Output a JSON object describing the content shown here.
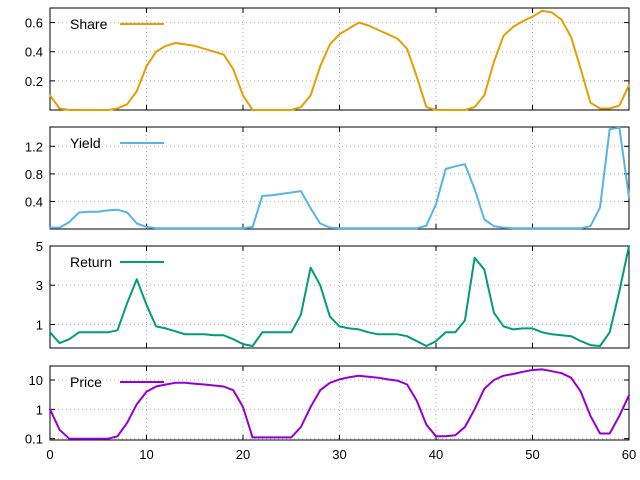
{
  "chart_data": [
    {
      "type": "line",
      "title": "",
      "xlabel": "",
      "ylabel": "",
      "xlim": [
        0,
        60
      ],
      "ylim": [
        0,
        0.7
      ],
      "yscale": "linear",
      "yticks": [
        0.2,
        0.4,
        0.6
      ],
      "ytick_labels": [
        "0.2",
        "0.4",
        "0.6"
      ],
      "xticks": [
        0,
        10,
        20,
        30,
        40,
        50,
        60
      ],
      "xtick_labels": [],
      "grid": true,
      "legend": "top-left",
      "series": [
        {
          "name": "Share",
          "color": "#e69f00",
          "x": [
            0,
            1,
            2,
            3,
            4,
            5,
            6,
            7,
            8,
            9,
            10,
            11,
            12,
            13,
            14,
            15,
            16,
            17,
            18,
            19,
            20,
            21,
            22,
            23,
            24,
            25,
            26,
            27,
            28,
            29,
            30,
            31,
            32,
            33,
            34,
            35,
            36,
            37,
            38,
            39,
            40,
            41,
            42,
            43,
            44,
            45,
            46,
            47,
            48,
            49,
            50,
            51,
            52,
            53,
            54,
            55,
            56,
            57,
            58,
            59,
            60
          ],
          "y": [
            0.1,
            0.01,
            0.0,
            0.0,
            0.0,
            0.0,
            0.0,
            0.01,
            0.04,
            0.13,
            0.3,
            0.4,
            0.44,
            0.46,
            0.45,
            0.44,
            0.42,
            0.4,
            0.38,
            0.28,
            0.1,
            0.0,
            0.0,
            0.0,
            0.0,
            0.0,
            0.02,
            0.1,
            0.3,
            0.45,
            0.52,
            0.56,
            0.6,
            0.58,
            0.55,
            0.52,
            0.49,
            0.42,
            0.23,
            0.02,
            0.0,
            0.0,
            0.0,
            0.0,
            0.02,
            0.1,
            0.33,
            0.51,
            0.57,
            0.61,
            0.64,
            0.68,
            0.67,
            0.62,
            0.5,
            0.28,
            0.05,
            0.01,
            0.01,
            0.03,
            0.17
          ]
        }
      ]
    },
    {
      "type": "line",
      "title": "",
      "xlabel": "",
      "ylabel": "",
      "xlim": [
        0,
        60
      ],
      "ylim": [
        0,
        1.48
      ],
      "yscale": "linear",
      "yticks": [
        0.4,
        0.8,
        1.2
      ],
      "ytick_labels": [
        "0.4",
        "0.8",
        "1.2"
      ],
      "xticks": [
        0,
        10,
        20,
        30,
        40,
        50,
        60
      ],
      "xtick_labels": [],
      "grid": true,
      "legend": "top-left",
      "series": [
        {
          "name": "Yield",
          "color": "#56b4e9",
          "x": [
            0,
            1,
            2,
            3,
            4,
            5,
            6,
            7,
            8,
            9,
            10,
            11,
            12,
            13,
            14,
            15,
            16,
            17,
            18,
            19,
            20,
            21,
            22,
            23,
            24,
            25,
            26,
            27,
            28,
            29,
            30,
            31,
            32,
            33,
            34,
            35,
            36,
            37,
            38,
            39,
            40,
            41,
            42,
            43,
            44,
            45,
            46,
            47,
            48,
            49,
            50,
            51,
            52,
            53,
            54,
            55,
            56,
            57,
            58,
            59,
            60
          ],
          "y": [
            0.02,
            0.02,
            0.1,
            0.24,
            0.25,
            0.25,
            0.27,
            0.28,
            0.24,
            0.08,
            0.03,
            0.01,
            0.01,
            0.01,
            0.01,
            0.01,
            0.01,
            0.01,
            0.01,
            0.01,
            0.01,
            0.03,
            0.48,
            0.49,
            0.51,
            0.53,
            0.55,
            0.3,
            0.08,
            0.02,
            0.01,
            0.01,
            0.01,
            0.01,
            0.01,
            0.01,
            0.01,
            0.01,
            0.01,
            0.05,
            0.36,
            0.87,
            0.91,
            0.94,
            0.58,
            0.14,
            0.04,
            0.02,
            0.01,
            0.01,
            0.01,
            0.01,
            0.01,
            0.01,
            0.01,
            0.01,
            0.04,
            0.31,
            1.45,
            1.47,
            0.46
          ]
        }
      ]
    },
    {
      "type": "line",
      "title": "",
      "xlabel": "",
      "ylabel": "",
      "xlim": [
        0,
        60
      ],
      "ylim": [
        -0.2,
        5
      ],
      "yscale": "linear",
      "yticks": [
        1,
        3,
        5
      ],
      "ytick_labels": [
        "1",
        "3",
        "5"
      ],
      "xticks": [
        0,
        10,
        20,
        30,
        40,
        50,
        60
      ],
      "xtick_labels": [],
      "grid": true,
      "legend": "top-left",
      "series": [
        {
          "name": "Return",
          "color": "#009e73",
          "x": [
            0,
            1,
            2,
            3,
            4,
            5,
            6,
            7,
            8,
            9,
            10,
            11,
            12,
            13,
            14,
            15,
            16,
            17,
            18,
            19,
            20,
            21,
            22,
            23,
            24,
            25,
            26,
            27,
            28,
            29,
            30,
            31,
            32,
            33,
            34,
            35,
            36,
            37,
            38,
            39,
            40,
            41,
            42,
            43,
            44,
            45,
            46,
            47,
            48,
            49,
            50,
            51,
            52,
            53,
            54,
            55,
            56,
            57,
            58,
            59,
            60
          ],
          "y": [
            0.6,
            0.05,
            0.25,
            0.6,
            0.6,
            0.6,
            0.6,
            0.7,
            2.1,
            3.3,
            2.0,
            0.9,
            0.8,
            0.65,
            0.5,
            0.5,
            0.5,
            0.45,
            0.45,
            0.25,
            0.0,
            -0.1,
            0.6,
            0.6,
            0.6,
            0.6,
            1.5,
            3.9,
            3.0,
            1.4,
            0.9,
            0.8,
            0.75,
            0.6,
            0.5,
            0.5,
            0.5,
            0.4,
            0.15,
            -0.1,
            0.15,
            0.6,
            0.6,
            1.2,
            4.4,
            3.8,
            1.6,
            0.9,
            0.75,
            0.8,
            0.8,
            0.6,
            0.5,
            0.45,
            0.4,
            0.15,
            -0.05,
            -0.1,
            0.6,
            2.7,
            5.0
          ]
        }
      ]
    },
    {
      "type": "line",
      "title": "",
      "xlabel": "",
      "ylabel": "",
      "xlim": [
        0,
        60
      ],
      "ylim": [
        0.09,
        30
      ],
      "yscale": "log",
      "yticks": [
        0.1,
        1,
        10
      ],
      "ytick_labels": [
        "0.1",
        "1",
        "10"
      ],
      "xticks": [
        0,
        10,
        20,
        30,
        40,
        50,
        60
      ],
      "xtick_labels": [
        "0",
        "10",
        "20",
        "30",
        "40",
        "50",
        "60"
      ],
      "grid": true,
      "legend": "top-left",
      "series": [
        {
          "name": "Price",
          "color": "#9400d3",
          "x": [
            0,
            1,
            2,
            3,
            4,
            5,
            6,
            7,
            8,
            9,
            10,
            11,
            12,
            13,
            14,
            15,
            16,
            17,
            18,
            19,
            20,
            21,
            22,
            23,
            24,
            25,
            26,
            27,
            28,
            29,
            30,
            31,
            32,
            33,
            34,
            35,
            36,
            37,
            38,
            39,
            40,
            41,
            42,
            43,
            44,
            45,
            46,
            47,
            48,
            49,
            50,
            51,
            52,
            53,
            54,
            55,
            56,
            57,
            58,
            59,
            60
          ],
          "y": [
            1.0,
            0.2,
            0.1,
            0.1,
            0.1,
            0.1,
            0.1,
            0.12,
            0.35,
            1.5,
            4.0,
            6.0,
            7.0,
            8.0,
            8.0,
            7.5,
            7.0,
            6.5,
            6.0,
            4.5,
            1.2,
            0.11,
            0.11,
            0.11,
            0.11,
            0.11,
            0.25,
            1.2,
            4.5,
            8.0,
            10.5,
            12.5,
            14.0,
            13.0,
            12.0,
            10.5,
            9.5,
            7.0,
            2.0,
            0.3,
            0.12,
            0.12,
            0.13,
            0.25,
            1.0,
            5.0,
            10.0,
            14.0,
            16.0,
            19.0,
            22.0,
            23.0,
            20.0,
            17.0,
            12.0,
            4.0,
            0.6,
            0.15,
            0.15,
            0.6,
            3.0
          ]
        }
      ]
    }
  ]
}
